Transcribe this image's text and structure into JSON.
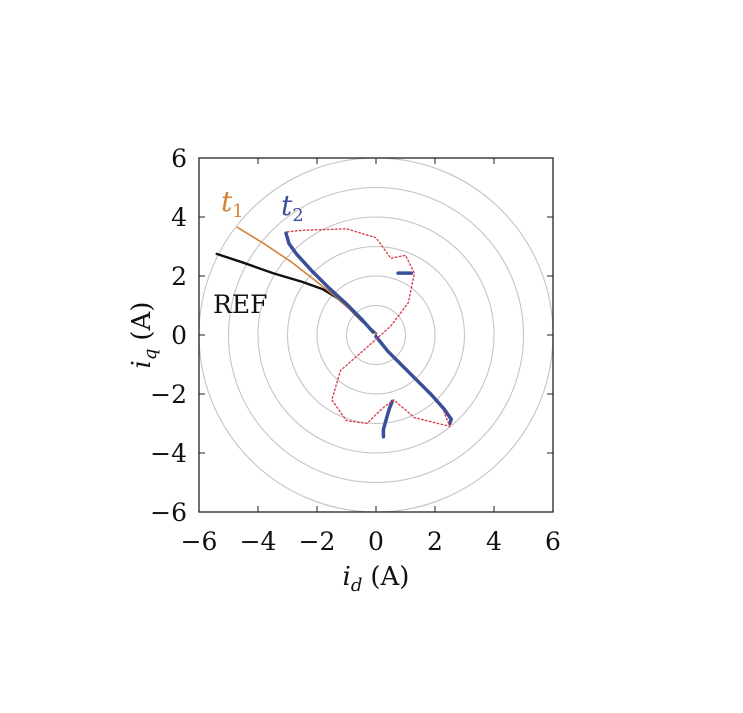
{
  "chart_data": {
    "type": "line",
    "xlabel": {
      "var": "i",
      "sub": "d",
      "unit": "(A)"
    },
    "ylabel": {
      "var": "i",
      "sub": "q",
      "unit": "(A)"
    },
    "xlim": [
      -6,
      6
    ],
    "ylim": [
      -6,
      6
    ],
    "xticks": [
      -6,
      -4,
      -2,
      0,
      2,
      4,
      6
    ],
    "yticks": [
      6,
      4,
      2,
      0,
      -2,
      -4,
      -6
    ],
    "grid": "concentric circles",
    "circle_radii": [
      1,
      2,
      3,
      4,
      5,
      6
    ],
    "annotations": [
      {
        "text": "REF",
        "color": "#111111"
      },
      {
        "var": "t",
        "sub": "1",
        "color": "#d4813a"
      },
      {
        "var": "t",
        "sub": "2",
        "color": "#3a4f9a"
      }
    ],
    "series": [
      {
        "color": "#111111",
        "style": "solid",
        "width": 2.4,
        "points": [
          [
            -5.4,
            2.75
          ],
          [
            -4.5,
            2.45
          ],
          [
            -3.5,
            2.1
          ],
          [
            -2.5,
            1.8
          ],
          [
            -1.8,
            1.55
          ],
          [
            -1.3,
            1.25
          ],
          [
            -0.9,
            0.9
          ],
          [
            -0.5,
            0.5
          ],
          [
            0.0,
            0.05
          ]
        ]
      },
      {
        "color": "#d4813a",
        "style": "solid",
        "width": 1.6,
        "points": [
          [
            -4.7,
            3.65
          ],
          [
            -3.8,
            3.1
          ],
          [
            -2.9,
            2.5
          ],
          [
            -2.0,
            1.8
          ],
          [
            -1.3,
            1.25
          ],
          [
            -0.7,
            0.7
          ],
          [
            -0.3,
            0.3
          ],
          [
            0.0,
            0.05
          ]
        ]
      },
      {
        "color": "#3a4f9a",
        "style": "solid",
        "width": 3.5,
        "points": [
          [
            -3.05,
            3.45
          ],
          [
            -2.95,
            3.1
          ],
          [
            -2.7,
            2.75
          ],
          [
            -2.2,
            2.2
          ],
          [
            -1.6,
            1.6
          ],
          [
            -1.0,
            1.05
          ],
          [
            -0.5,
            0.55
          ],
          [
            -0.1,
            0.1
          ]
        ]
      },
      {
        "color": "#3a4f9a",
        "style": "solid",
        "width": 3.5,
        "points": [
          [
            0.0,
            -0.05
          ],
          [
            0.4,
            -0.55
          ],
          [
            0.9,
            -1.05
          ],
          [
            1.4,
            -1.55
          ],
          [
            1.9,
            -2.05
          ],
          [
            2.3,
            -2.5
          ],
          [
            2.55,
            -2.85
          ],
          [
            2.5,
            -3.0
          ]
        ]
      },
      {
        "color": "#3a4f9a",
        "style": "solid",
        "width": 3.5,
        "points": [
          [
            0.75,
            2.1
          ],
          [
            1.2,
            2.1
          ]
        ]
      },
      {
        "color": "#3a4f9a",
        "style": "solid",
        "width": 3.5,
        "points": [
          [
            0.55,
            -2.25
          ],
          [
            0.45,
            -2.5
          ],
          [
            0.35,
            -2.85
          ],
          [
            0.25,
            -3.2
          ],
          [
            0.25,
            -3.45
          ]
        ]
      },
      {
        "color": "#d8424f",
        "style": "dotted",
        "width": 1.4,
        "points": [
          [
            -3.0,
            3.5
          ],
          [
            -2.5,
            3.55
          ],
          [
            -1.0,
            3.6
          ],
          [
            0.0,
            3.3
          ],
          [
            0.5,
            2.6
          ],
          [
            1.0,
            2.7
          ],
          [
            1.3,
            2.1
          ],
          [
            1.1,
            1.1
          ],
          [
            0.5,
            0.3
          ],
          [
            -0.4,
            -0.5
          ],
          [
            -1.2,
            -1.2
          ],
          [
            -1.5,
            -2.2
          ],
          [
            -1.0,
            -2.9
          ],
          [
            -0.3,
            -3.0
          ],
          [
            0.2,
            -2.5
          ],
          [
            0.6,
            -2.2
          ],
          [
            1.3,
            -2.8
          ],
          [
            2.5,
            -3.1
          ],
          [
            2.3,
            -2.6
          ]
        ]
      }
    ]
  }
}
